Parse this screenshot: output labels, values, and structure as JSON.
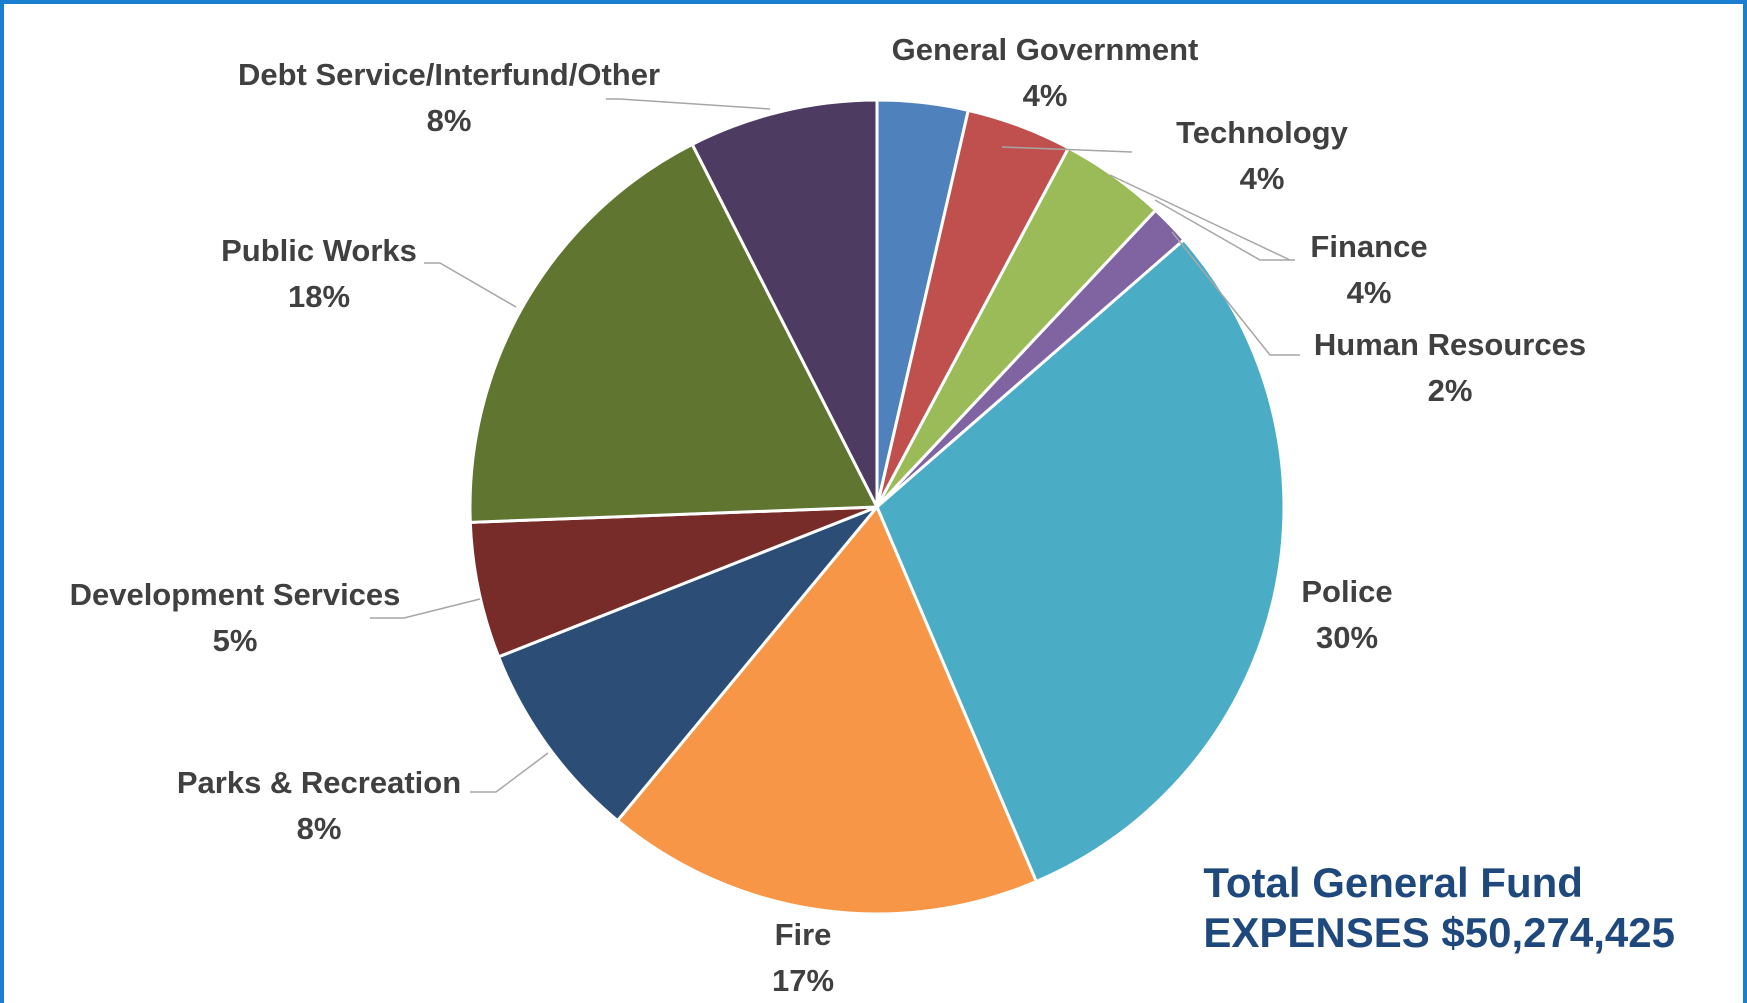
{
  "chart_data": {
    "type": "pie",
    "total": {
      "line1": "Total General Fund",
      "line2": "EXPENSES $50,274,425"
    },
    "slices": [
      {
        "label": "General Government",
        "pct_label": "4%",
        "value": 3.6,
        "color": "#4f81bd"
      },
      {
        "label": "Technology",
        "pct_label": "4%",
        "value": 4.2,
        "color": "#c0504d"
      },
      {
        "label": "Finance",
        "pct_label": "4%",
        "value": 4.2,
        "color": "#9bbb59"
      },
      {
        "label": "Human Resources",
        "pct_label": "2%",
        "value": 1.6,
        "color": "#8064a2"
      },
      {
        "label": "Police",
        "pct_label": "30%",
        "value": 30.0,
        "color": "#4bacc6"
      },
      {
        "label": "Fire",
        "pct_label": "17%",
        "value": 17.4,
        "color": "#f79646"
      },
      {
        "label": "Parks & Recreation",
        "pct_label": "8%",
        "value": 8.0,
        "color": "#2c4d75"
      },
      {
        "label": "Development Services",
        "pct_label": "5%",
        "value": 5.4,
        "color": "#772c2a"
      },
      {
        "label": "Public Works",
        "pct_label": "18%",
        "value": 18.1,
        "color": "#5f7530"
      },
      {
        "label": "Debt Service/Interfund/Other",
        "pct_label": "8%",
        "value": 7.5,
        "color": "#4d3b62"
      }
    ]
  }
}
